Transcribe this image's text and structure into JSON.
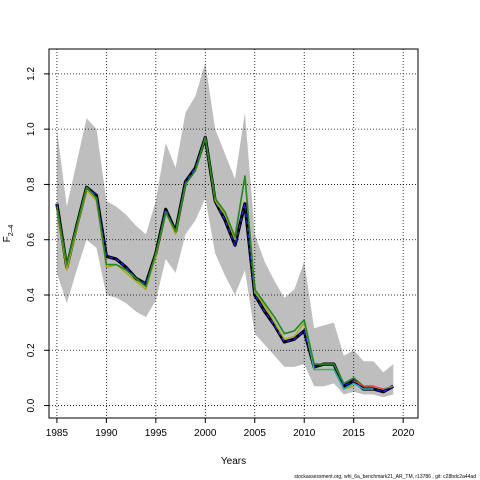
{
  "chart_data": {
    "type": "line",
    "xlabel": "Years",
    "ylabel": "F",
    "ylabel_sub": "2–4",
    "footer": "stockassessment.org, whi_6a_benchmark21_AR_TM, r13786 , git: c28bdc2a44ad",
    "xlim": [
      1984.2,
      2021.5
    ],
    "ylim": [
      -0.045,
      1.29
    ],
    "xticks": [
      1985,
      1990,
      1995,
      2000,
      2005,
      2010,
      2015,
      2020
    ],
    "yticks": [
      0.0,
      0.2,
      0.4,
      0.6,
      0.8,
      1.0,
      1.2
    ],
    "ytick_labels": [
      "0.0",
      "0.2",
      "0.4",
      "0.6",
      "0.8",
      "1.0",
      "1.2"
    ],
    "grid": true,
    "band": {
      "color": "#bebebe",
      "x": [
        1985,
        1986,
        1987,
        1988,
        1989,
        1990,
        1991,
        1992,
        1993,
        1994,
        1995,
        1996,
        1997,
        1998,
        1999,
        2000,
        2001,
        2002,
        2003,
        2004,
        2005,
        2006,
        2007,
        2008,
        2009,
        2010,
        2011,
        2012,
        2013,
        2014,
        2015,
        2016,
        2017,
        2018,
        2019
      ],
      "upper": [
        1.0,
        0.72,
        0.88,
        1.04,
        1.0,
        0.74,
        0.72,
        0.69,
        0.65,
        0.62,
        0.74,
        0.95,
        0.86,
        1.06,
        1.12,
        1.24,
        1.0,
        0.91,
        0.82,
        1.06,
        0.62,
        0.52,
        0.45,
        0.39,
        0.42,
        0.52,
        0.28,
        0.29,
        0.3,
        0.18,
        0.2,
        0.16,
        0.16,
        0.12,
        0.15
      ],
      "lower": [
        0.48,
        0.37,
        0.49,
        0.6,
        0.57,
        0.4,
        0.39,
        0.37,
        0.34,
        0.32,
        0.38,
        0.53,
        0.48,
        0.62,
        0.67,
        0.75,
        0.55,
        0.47,
        0.4,
        0.49,
        0.26,
        0.22,
        0.18,
        0.14,
        0.14,
        0.15,
        0.07,
        0.07,
        0.08,
        0.04,
        0.05,
        0.04,
        0.04,
        0.03,
        0.04
      ]
    },
    "series": [
      {
        "color": "#000000",
        "dashed": false,
        "width": 3.2,
        "values": [
          0.73,
          0.5,
          0.65,
          0.79,
          0.76,
          0.54,
          0.53,
          0.5,
          0.46,
          0.44,
          0.55,
          0.71,
          0.63,
          0.81,
          0.86,
          0.97,
          0.74,
          0.67,
          0.58,
          0.73,
          0.4,
          0.34,
          0.29,
          0.23,
          0.24,
          0.27,
          0.14,
          0.15,
          0.15,
          0.07,
          0.09,
          0.06,
          0.06,
          0.05,
          0.07
        ]
      },
      {
        "color": "#2020ff",
        "dashed": true,
        "width": 1.4,
        "values": [
          0.73,
          0.5,
          0.65,
          0.79,
          0.76,
          0.54,
          0.53,
          0.5,
          0.46,
          0.44,
          0.55,
          0.71,
          0.63,
          0.81,
          0.86,
          0.97,
          0.74,
          0.67,
          0.58,
          0.73,
          0.4,
          0.34,
          0.29,
          0.23,
          0.24,
          0.27,
          0.14,
          0.15,
          0.15,
          0.07,
          0.09,
          0.06,
          0.06,
          0.05,
          0.07
        ]
      },
      {
        "color": "#aaaa00",
        "dashed": false,
        "width": 1.4,
        "values": [
          0.71,
          0.49,
          0.64,
          0.78,
          0.74,
          0.5,
          0.51,
          0.48,
          0.45,
          0.42,
          0.54,
          0.7,
          0.62,
          0.8,
          0.85,
          0.97,
          0.74,
          0.69,
          0.6,
          0.83,
          0.41,
          0.36,
          0.3,
          0.24,
          0.25,
          0.3,
          0.13,
          0.13,
          0.13,
          0.06,
          0.07,
          null,
          null,
          null,
          null
        ]
      },
      {
        "color": "#20b0b0",
        "dashed": false,
        "width": 1.4,
        "values": [
          null,
          null,
          null,
          null,
          null,
          null,
          null,
          null,
          null,
          null,
          null,
          null,
          null,
          null,
          null,
          null,
          null,
          null,
          null,
          null,
          0.42,
          0.37,
          0.32,
          0.26,
          0.27,
          0.31,
          0.13,
          0.13,
          0.13,
          0.06,
          0.08,
          0.06,
          0.06,
          null,
          null
        ]
      },
      {
        "color": "#228b22",
        "dashed": false,
        "width": 1.6,
        "values": [
          0.72,
          0.51,
          0.65,
          0.79,
          0.75,
          0.51,
          0.51,
          0.49,
          0.46,
          0.43,
          0.55,
          0.7,
          0.63,
          0.8,
          0.85,
          0.97,
          0.75,
          0.7,
          0.61,
          0.83,
          0.42,
          0.37,
          0.32,
          0.26,
          0.27,
          0.31,
          0.15,
          0.15,
          0.15,
          0.08,
          0.1,
          0.07,
          0.07,
          null,
          null
        ]
      },
      {
        "color": "#ff3030",
        "dashed": false,
        "width": 1.2,
        "values": [
          null,
          null,
          null,
          null,
          null,
          null,
          null,
          null,
          null,
          null,
          null,
          null,
          null,
          null,
          null,
          null,
          null,
          null,
          null,
          null,
          null,
          null,
          null,
          null,
          null,
          null,
          null,
          null,
          null,
          null,
          0.09,
          0.07,
          0.07,
          0.06,
          0.07
        ]
      },
      {
        "color": "#808080",
        "dashed": false,
        "width": 1.4,
        "values": [
          null,
          null,
          null,
          null,
          null,
          null,
          null,
          null,
          null,
          null,
          null,
          null,
          null,
          null,
          null,
          null,
          null,
          null,
          null,
          null,
          null,
          null,
          null,
          null,
          null,
          null,
          null,
          null,
          null,
          null,
          null,
          null,
          null,
          0.06,
          0.07
        ]
      }
    ]
  }
}
